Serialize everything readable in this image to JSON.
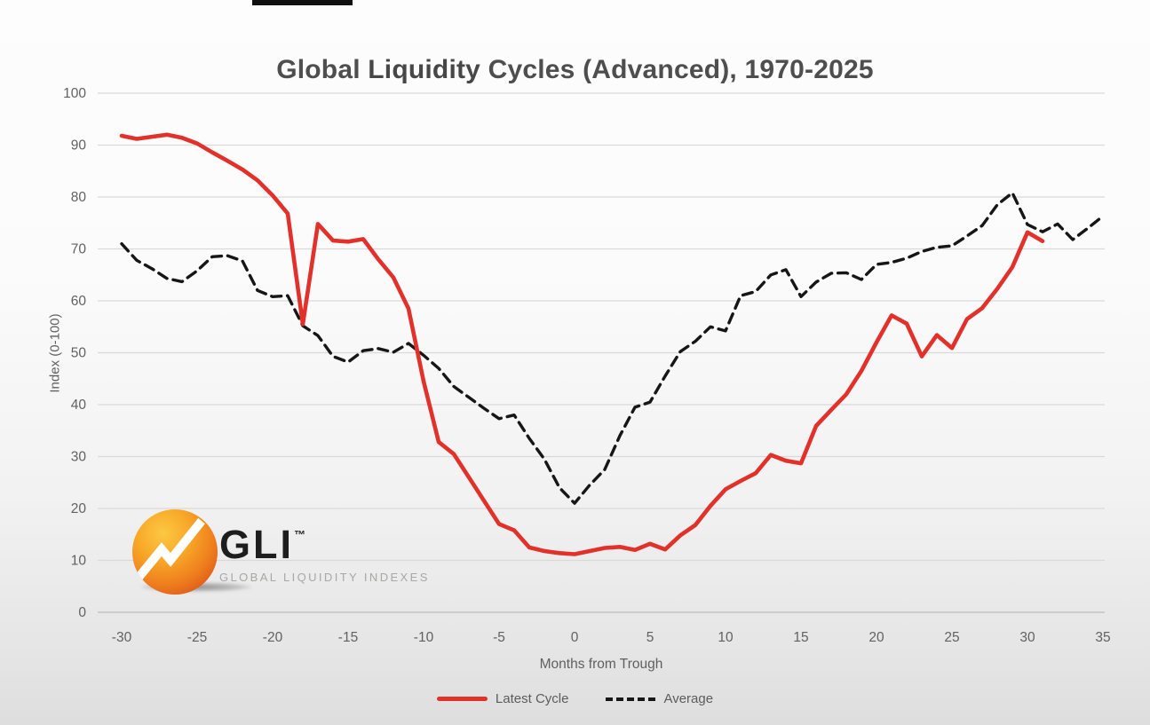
{
  "title": {
    "part1": "Global ",
    "part2": "Liquidity",
    "part3": " Cycles (Advanced), 1970-2025"
  },
  "logo": {
    "name": "GLI",
    "trademark": "™",
    "tagline": "GLOBAL LIQUIDITY INDEXES"
  },
  "chart_data": {
    "type": "line",
    "title": "Global Liquidity Cycles (Advanced), 1970-2025",
    "xlabel": "Months from Trough",
    "ylabel": "Index (0-100)",
    "xlim": [
      -30,
      35
    ],
    "ylim": [
      0,
      100
    ],
    "xticks": [
      -30,
      -25,
      -20,
      -15,
      -10,
      -5,
      0,
      5,
      10,
      15,
      20,
      25,
      30,
      35
    ],
    "yticks": [
      0,
      10,
      20,
      30,
      40,
      50,
      60,
      70,
      80,
      90,
      100
    ],
    "grid": "horizontal",
    "gridline_color": "#d9d9d9",
    "legend_position": "bottom",
    "series": [
      {
        "name": "Latest Cycle",
        "style": "solid",
        "color": "#e1312a",
        "x_start": -30,
        "x_step": 1,
        "values": [
          91.8,
          91.2,
          91.6,
          92,
          91.4,
          90.3,
          88.6,
          87,
          85.3,
          83.2,
          80.3,
          76.8,
          55.5,
          74.8,
          71.6,
          71.4,
          71.9,
          68,
          64.5,
          58.5,
          44.5,
          32.8,
          30.5,
          26,
          21.5,
          17,
          15.8,
          12.5,
          11.8,
          11.4,
          11.2,
          11.8,
          12.4,
          12.6,
          12,
          13.2,
          12.1,
          14.8,
          16.8,
          20.5,
          23.7,
          25.3,
          26.8,
          30.3,
          29.2,
          28.7,
          35.9,
          39,
          42,
          46.5,
          52,
          57.2,
          55.6,
          49.3,
          53.4,
          50.9,
          56.5,
          58.6,
          62.3,
          66.5,
          73.2,
          71.5
        ]
      },
      {
        "name": "Average",
        "style": "dashed",
        "color": "#161616",
        "x_start": -30,
        "x_step": 1,
        "values": [
          71,
          67.8,
          66.2,
          64.3,
          63.7,
          65.8,
          68.5,
          68.7,
          67.7,
          62,
          60.8,
          61,
          55.2,
          53.3,
          49.3,
          48.2,
          50.4,
          50.8,
          50.1,
          51.8,
          49.5,
          47,
          43.5,
          41.4,
          39.3,
          37.3,
          38,
          33.5,
          29.5,
          24,
          21,
          24.5,
          27.5,
          34,
          39.5,
          40.5,
          45.5,
          50.2,
          52.2,
          55,
          54.2,
          61,
          61.8,
          65,
          66,
          60.8,
          63.6,
          65.3,
          65.4,
          64.1,
          67,
          67.4,
          68.2,
          69.5,
          70.3,
          70.6,
          72.5,
          74.5,
          78.5,
          80.8,
          74.7,
          73.3,
          74.8,
          71.8,
          74,
          76.3
        ]
      }
    ]
  }
}
